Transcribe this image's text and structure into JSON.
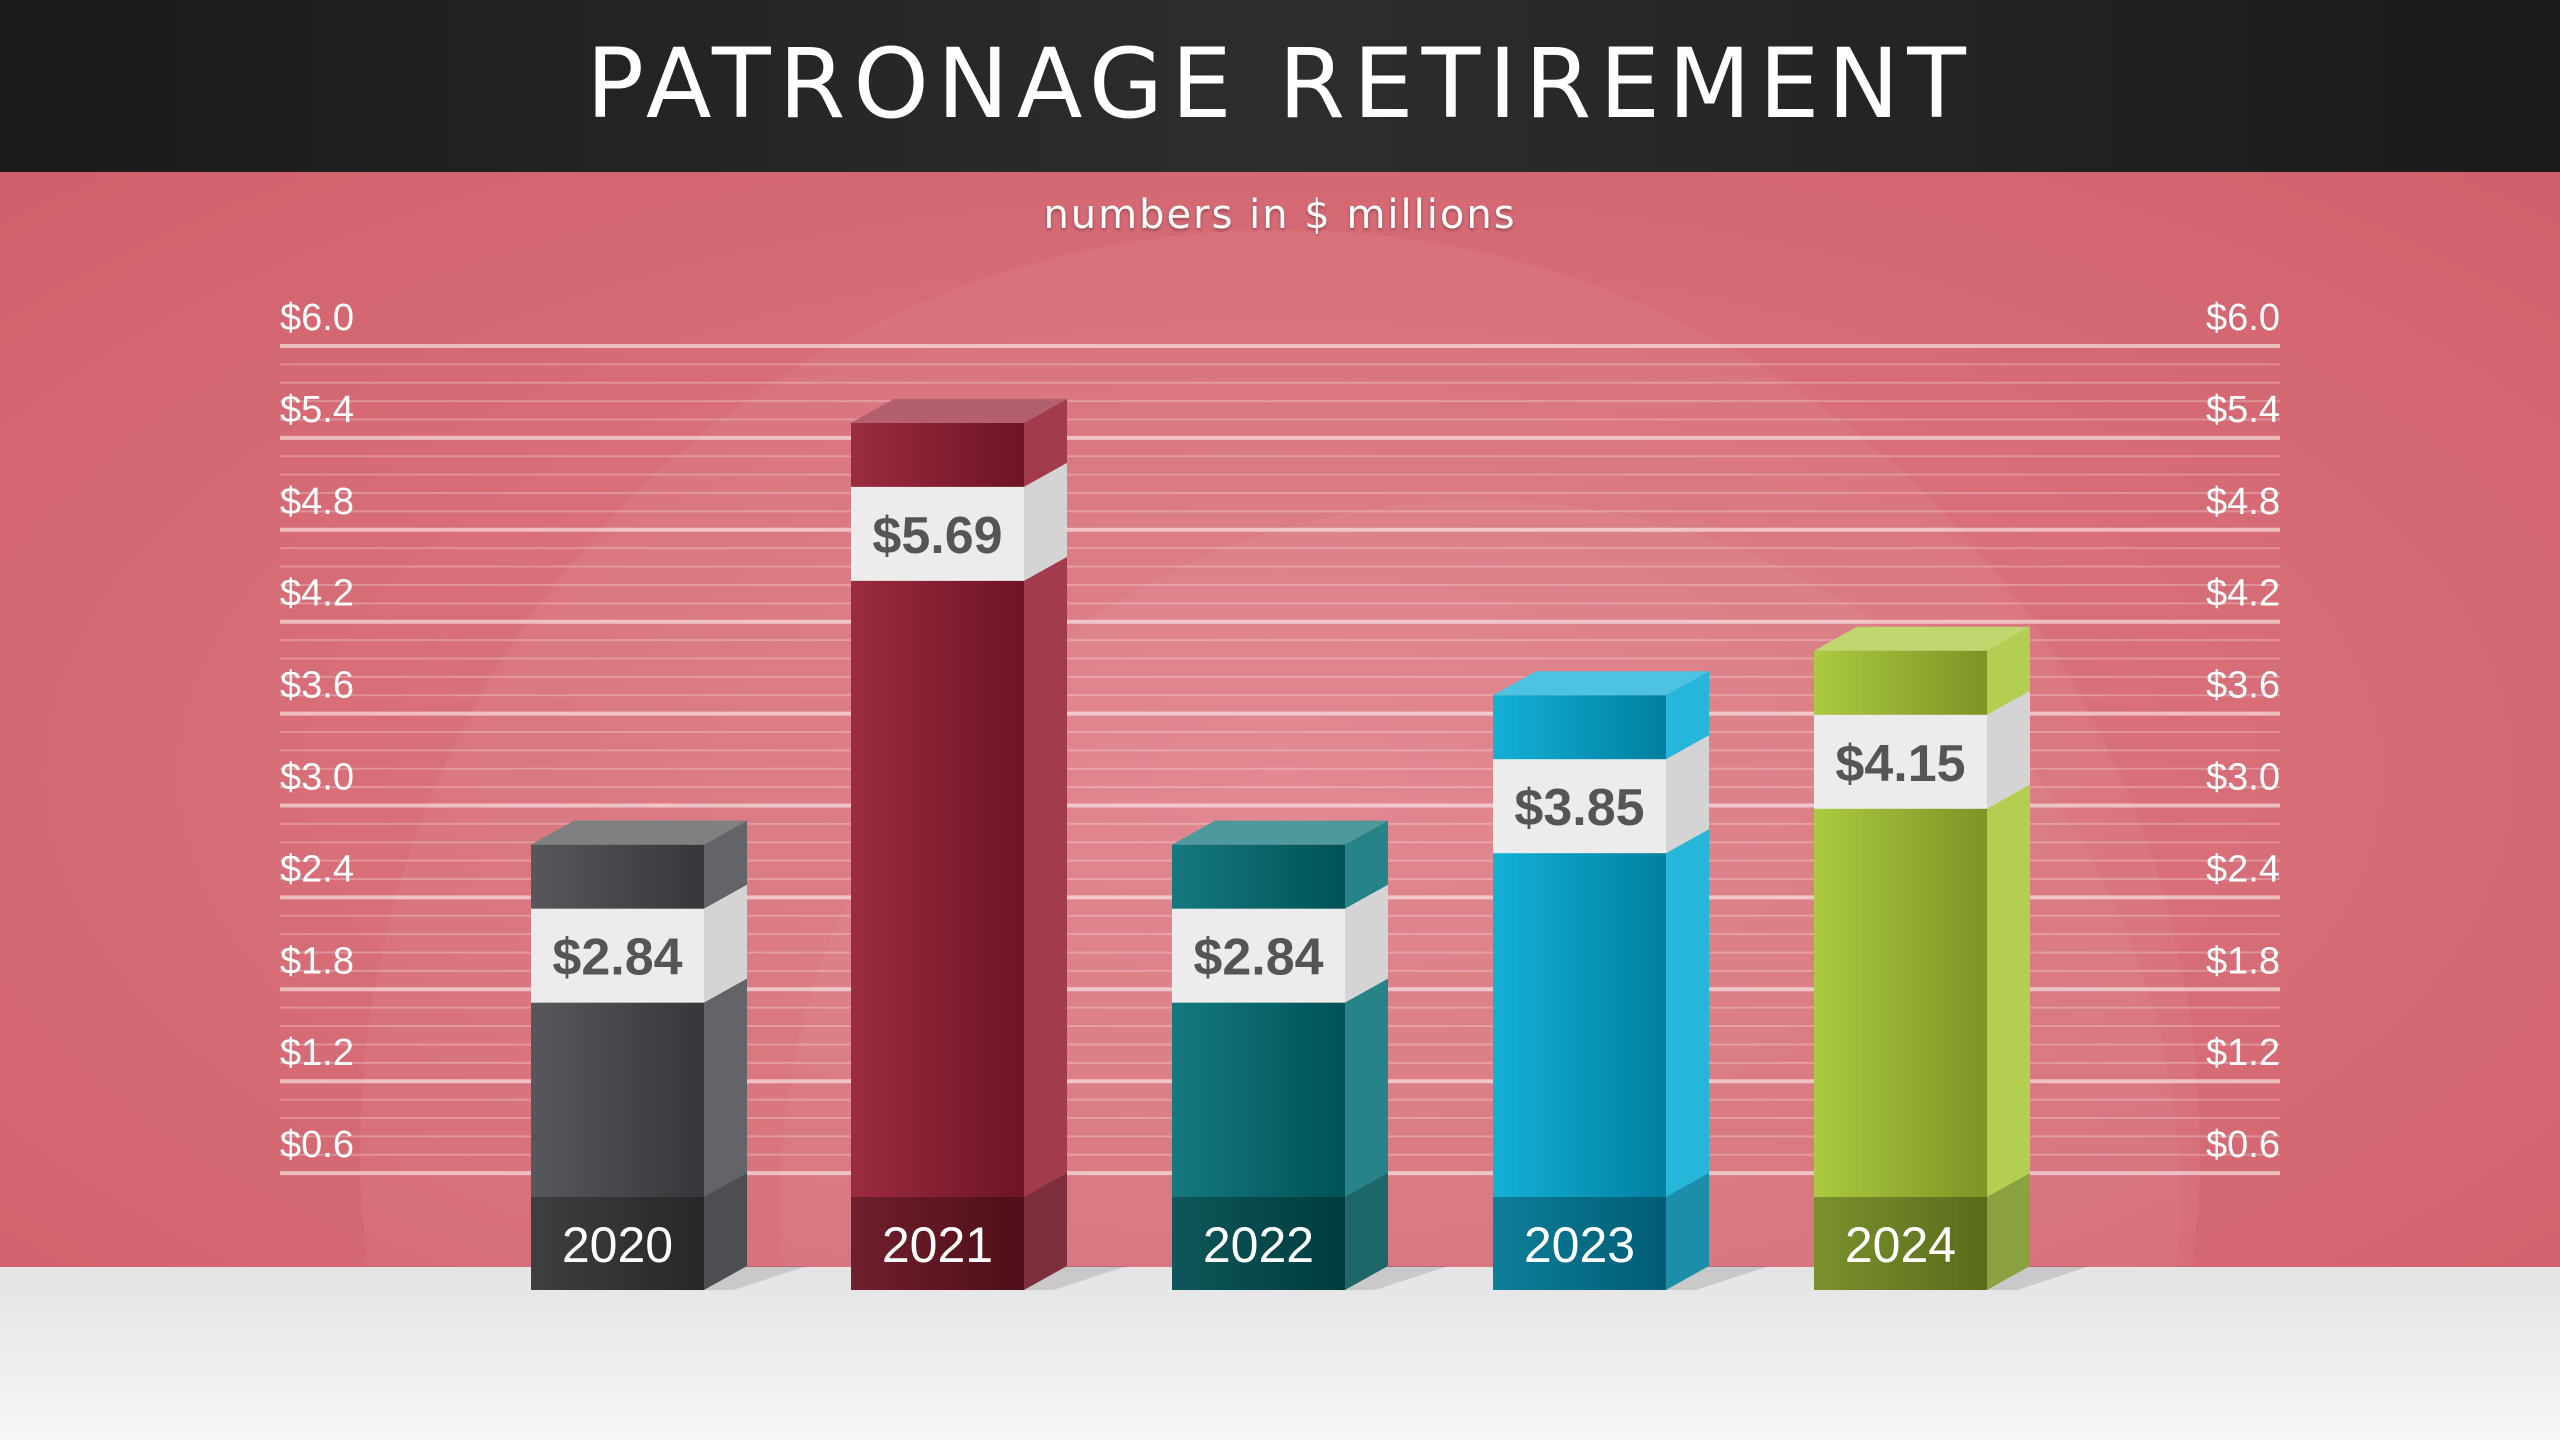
{
  "title": "PATRONAGE RETIREMENT",
  "subtitle": "numbers in $ millions",
  "chart_data": {
    "type": "bar",
    "title": "PATRONAGE RETIREMENT",
    "subtitle": "numbers in $ millions",
    "categories": [
      "2020",
      "2021",
      "2022",
      "2023",
      "2024"
    ],
    "values": [
      2.84,
      5.69,
      2.84,
      3.85,
      4.15
    ],
    "value_labels": [
      "$2.84",
      "$5.69",
      "$2.84",
      "$3.85",
      "$4.15"
    ],
    "ytick_labels": [
      "$0.6",
      "$1.2",
      "$1.8",
      "$2.4",
      "$3.0",
      "$3.6",
      "$4.2",
      "$4.8",
      "$5.4",
      "$6.0"
    ],
    "yticks": [
      0.6,
      1.2,
      1.8,
      2.4,
      3.0,
      3.6,
      4.2,
      4.8,
      5.4,
      6.0
    ],
    "ylim": [
      0,
      6.0
    ],
    "grid": true,
    "axis_labels_both_sides": true,
    "style": "3d-columns",
    "colors": [
      "#47494d",
      "#921a2e",
      "#006d73",
      "#00a9d4",
      "#a5c531"
    ]
  }
}
